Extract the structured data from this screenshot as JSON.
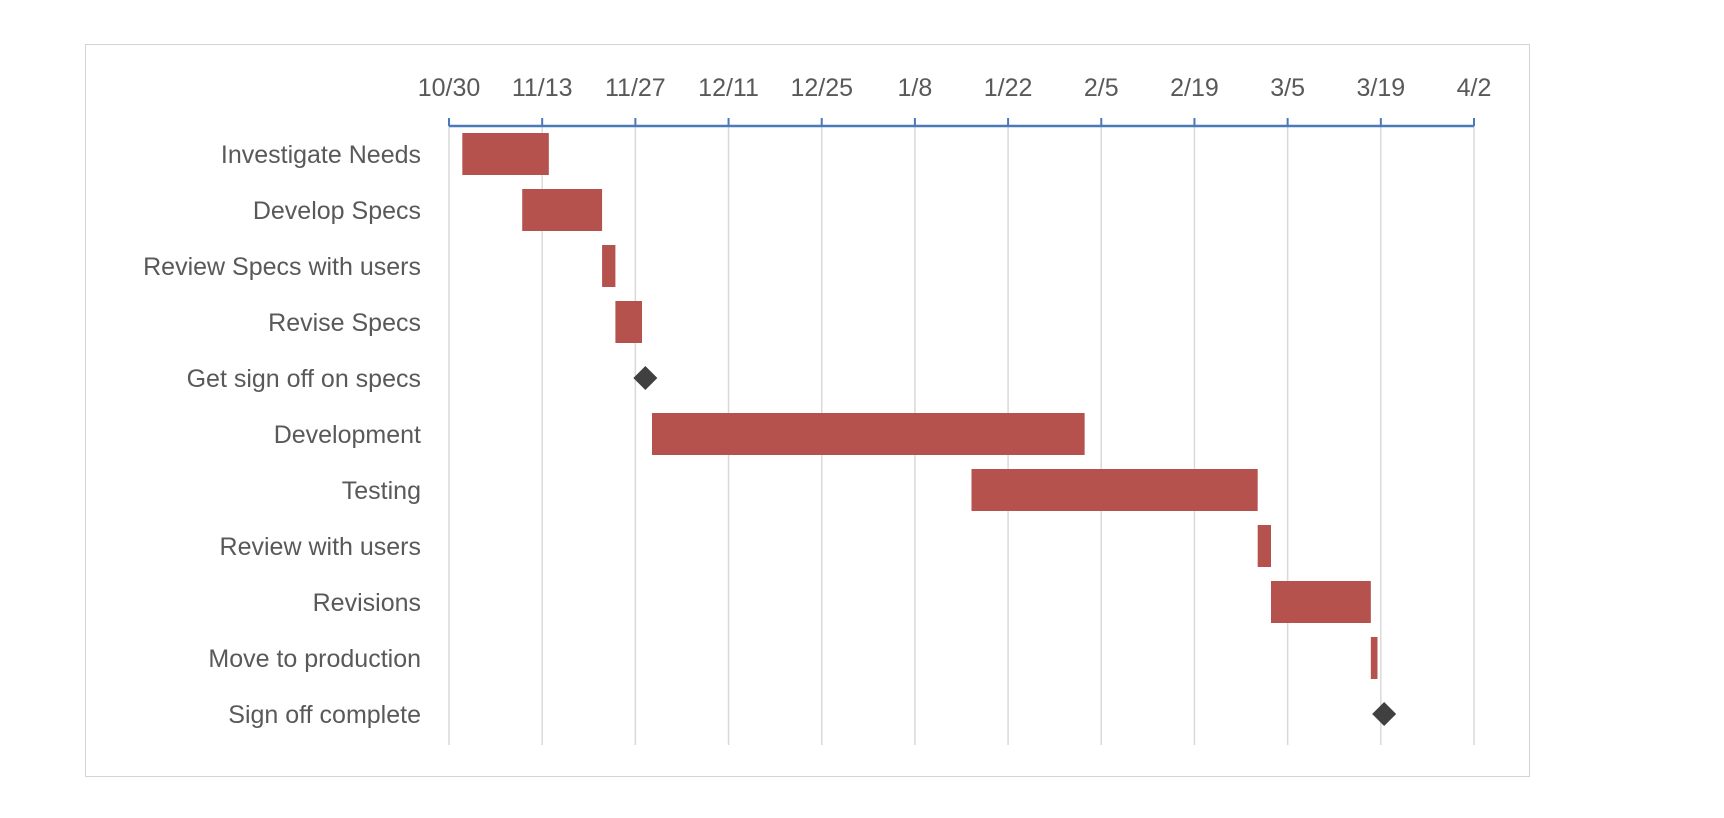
{
  "chart_data": {
    "type": "gantt",
    "title": "",
    "xlabel": "",
    "ylabel": "",
    "x_axis_position": "top",
    "grid": true,
    "legend": "none",
    "x_ticks": [
      "10/30",
      "11/13",
      "11/27",
      "12/11",
      "12/25",
      "1/8",
      "1/22",
      "2/5",
      "2/19",
      "3/5",
      "3/19",
      "4/2"
    ],
    "x_tick_values": [
      0,
      14,
      28,
      42,
      56,
      70,
      84,
      98,
      112,
      126,
      140,
      154
    ],
    "xlim": [
      0,
      154
    ],
    "tasks": [
      {
        "name": "Investigate Needs",
        "type": "bar",
        "start": 2,
        "end": 15
      },
      {
        "name": "Develop Specs",
        "type": "bar",
        "start": 11,
        "end": 23
      },
      {
        "name": "Review Specs with users",
        "type": "bar",
        "start": 23,
        "end": 25
      },
      {
        "name": "Revise Specs",
        "type": "bar",
        "start": 25,
        "end": 29
      },
      {
        "name": "Get sign off on specs",
        "type": "milestone",
        "start": 29.5,
        "end": 29.5
      },
      {
        "name": "Development",
        "type": "bar",
        "start": 30.5,
        "end": 95.5
      },
      {
        "name": "Testing",
        "type": "bar",
        "start": 78.5,
        "end": 121.5
      },
      {
        "name": "Review with users",
        "type": "bar",
        "start": 121.5,
        "end": 123.5
      },
      {
        "name": "Revisions",
        "type": "bar",
        "start": 123.5,
        "end": 138.5
      },
      {
        "name": "Move to production",
        "type": "bar",
        "start": 138.5,
        "end": 139.5
      },
      {
        "name": "Sign off complete",
        "type": "milestone",
        "start": 140.5,
        "end": 140.5
      }
    ],
    "colors": {
      "bar": "#b5524e",
      "milestone": "#404040",
      "axis": "#4a7ab8",
      "grid": "#d9d9d9",
      "text": "#595959"
    }
  }
}
